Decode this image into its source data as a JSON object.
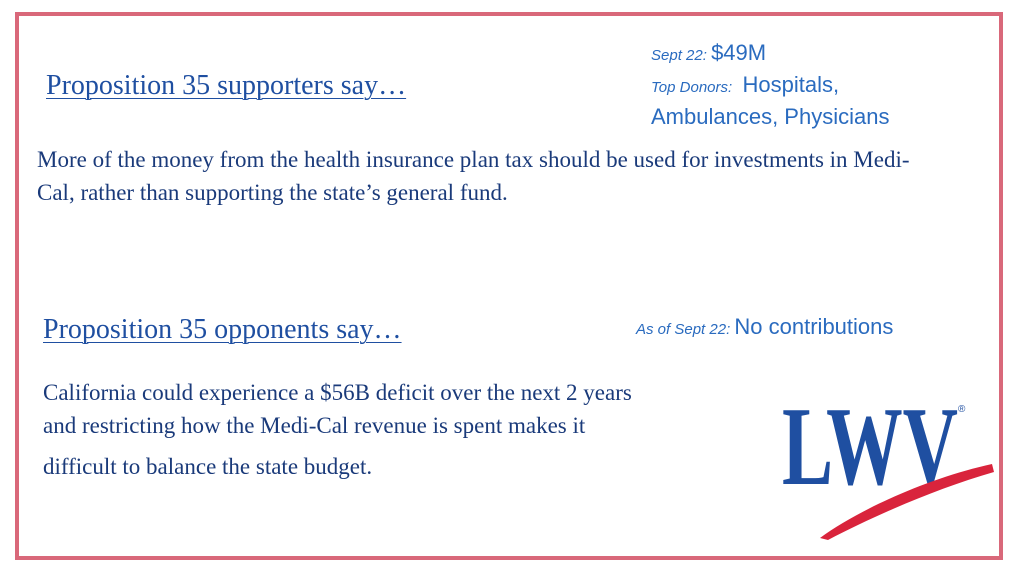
{
  "supporters": {
    "heading": "Proposition 35 supporters say…",
    "body": "More of the money from the health insurance plan tax should be used for investments in Medi-Cal, rather than supporting the state’s general fund.",
    "date_label": "Sept 22",
    "amount": "$49M",
    "donors_label": "Top Donors",
    "donors_line1": "Hospitals,",
    "donors_line2": "Ambulances, Physicians"
  },
  "opponents": {
    "heading": "Proposition 35 opponents say…",
    "body_line1": "California could experience a $56B deficit over the next 2 years",
    "body_line2": "and restricting how the Medi-Cal revenue is spent makes it",
    "body_line3": "difficult to balance the state budget.",
    "date_label": "As of Sept 22",
    "contributions": "No contributions"
  },
  "logo": {
    "text": "LWV",
    "registered_mark": "®",
    "primary_color": "#1f4fa1",
    "swoosh_color": "#d9243c"
  },
  "colors": {
    "border": "#d9687a",
    "heading": "#1f4fa1",
    "body": "#1a3a7a",
    "side": "#2a6bbf"
  }
}
